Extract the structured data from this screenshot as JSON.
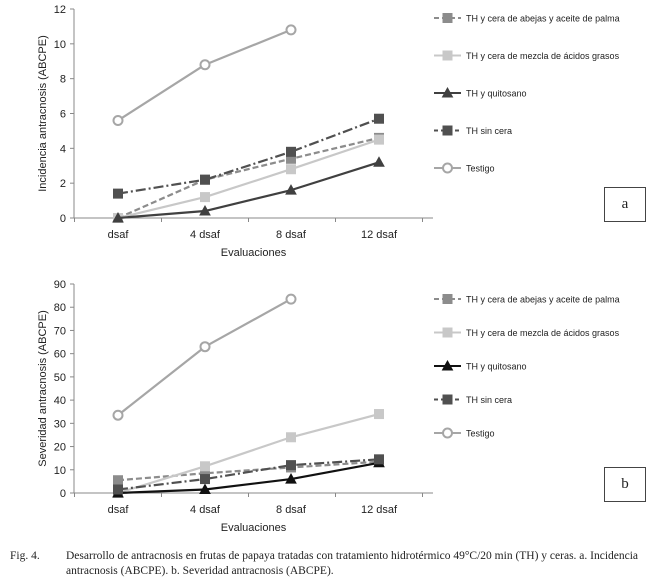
{
  "chart_data": [
    {
      "type": "line",
      "panel_label": "a",
      "categories": [
        "dsaf",
        "4 dsaf",
        "8 dsaf",
        "12 dsaf"
      ],
      "xlabel": "Evaluaciones",
      "ylabel": "Incidencia antracnosis (ABCPE)",
      "ylim": [
        0,
        12
      ],
      "yticks": [
        0,
        2,
        4,
        6,
        8,
        10,
        12
      ],
      "grid": false,
      "legend_position": "right",
      "series": [
        {
          "name": "TH y cera de abejas y aceite de palma",
          "values": [
            0,
            2.2,
            3.4,
            4.6
          ],
          "color": "#8c8c8c",
          "dash": "dashed",
          "marker": "square"
        },
        {
          "name": "TH y cera de mezcla de ácidos grasos",
          "values": [
            0,
            1.2,
            2.8,
            4.5
          ],
          "color": "#c8c8c8",
          "dash": "solid",
          "marker": "square"
        },
        {
          "name": "TH y quitosano",
          "values": [
            0,
            0.4,
            1.6,
            3.2
          ],
          "color": "#404040",
          "dash": "solid",
          "marker": "triangle"
        },
        {
          "name": "TH sin cera",
          "values": [
            1.4,
            2.2,
            3.8,
            5.7
          ],
          "color": "#505050",
          "dash": "dashdot",
          "marker": "square"
        },
        {
          "name": "Testigo",
          "values": [
            5.6,
            8.8,
            10.8,
            null
          ],
          "color": "#a6a6a6",
          "dash": "solid",
          "marker": "circle"
        }
      ]
    },
    {
      "type": "line",
      "panel_label": "b",
      "categories": [
        "dsaf",
        "4 dsaf",
        "8 dsaf",
        "12 dsaf"
      ],
      "xlabel": "Evaluaciones",
      "ylabel": "Severidad antracnosis (ABCPE)",
      "ylim": [
        0,
        90
      ],
      "yticks": [
        0,
        10,
        20,
        30,
        40,
        50,
        60,
        70,
        80,
        90
      ],
      "grid": false,
      "legend_position": "right",
      "series": [
        {
          "name": "TH y cera de abejas y aceite de palma",
          "values": [
            5.5,
            8.5,
            11,
            13.5
          ],
          "color": "#8c8c8c",
          "dash": "dashed",
          "marker": "square"
        },
        {
          "name": "TH y cera de mezcla de ácidos grasos",
          "values": [
            0,
            11.5,
            24,
            34
          ],
          "color": "#c8c8c8",
          "dash": "solid",
          "marker": "square"
        },
        {
          "name": "TH y quitosano",
          "values": [
            0,
            1.5,
            6,
            13
          ],
          "color": "#111111",
          "dash": "solid",
          "marker": "triangle"
        },
        {
          "name": "TH sin cera",
          "values": [
            1.5,
            6,
            12,
            14.5
          ],
          "color": "#505050",
          "dash": "dashdot",
          "marker": "square"
        },
        {
          "name": "Testigo",
          "values": [
            33.5,
            63,
            83.5,
            null
          ],
          "color": "#a6a6a6",
          "dash": "solid",
          "marker": "circle"
        }
      ]
    }
  ],
  "caption": {
    "label": "Fig. 4.",
    "text": "Desarrollo de antracnosis en frutas de papaya tratadas con tratamiento hidrotérmico 49°C/20 min (TH) y ceras. a. Incidencia antracnosis (ABCPE). b. Severidad antracnosis (ABCPE)."
  }
}
